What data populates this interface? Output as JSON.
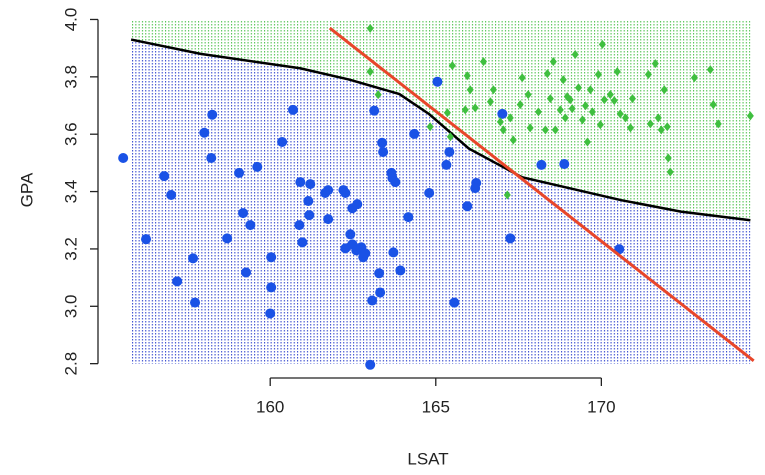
{
  "chart_data": {
    "type": "scatter",
    "x_label": "LSAT",
    "y_label": "GPA",
    "xlim": [
      154.8,
      174.7
    ],
    "ylim": [
      2.75,
      4.04
    ],
    "xticks": [
      160,
      165,
      170
    ],
    "yticks": [
      2.8,
      {
        "value": 3,
        "label": "3.0"
      },
      3.2,
      3.4,
      3.6,
      3.8,
      {
        "value": 4,
        "label": "4.0"
      }
    ],
    "points": [
      {
        "color": "#1a52e6",
        "marker": "circle",
        "x": [
          155.56,
          156.25,
          156.8,
          157.01,
          157.19,
          157.67,
          157.73,
          158.01,
          158.25,
          158.22,
          158.7,
          159.06,
          159.18,
          159.27,
          159.4,
          159.61,
          160,
          160.03,
          160.03,
          160.36,
          160.69,
          160.88,
          160.91,
          160.97,
          161.15,
          161.18,
          161.21,
          161.66,
          161.75,
          161.75,
          162.21,
          162.27,
          162.27,
          162.42,
          162.48,
          162.48,
          162.6,
          162.63,
          162.75,
          162.81,
          162.87,
          163.02,
          163.08,
          163.14,
          163.29,
          163.32,
          163.38,
          163.41,
          163.66,
          163.69,
          163.72,
          163.78,
          163.93,
          164.17,
          164.35,
          164.8,
          165.05,
          165.32,
          165.41,
          165.56,
          165.95,
          166.19,
          166.22,
          167.01,
          167.25,
          168.19,
          168.88,
          170.54
        ],
        "y": [
          3.517,
          3.234,
          3.454,
          3.388,
          3.087,
          3.167,
          3.013,
          3.605,
          3.668,
          3.517,
          3.237,
          3.465,
          3.325,
          3.118,
          3.283,
          3.486,
          2.975,
          3.171,
          3.066,
          3.573,
          3.685,
          3.283,
          3.433,
          3.223,
          3.367,
          3.318,
          3.426,
          3.395,
          3.304,
          3.405,
          3.405,
          3.395,
          3.202,
          3.251,
          3.216,
          3.342,
          3.195,
          3.356,
          3.206,
          3.171,
          3.185,
          2.796,
          3.02,
          3.682,
          3.115,
          3.048,
          3.57,
          3.538,
          3.465,
          3.447,
          3.188,
          3.433,
          3.125,
          3.311,
          3.601,
          3.395,
          3.783,
          3.493,
          3.538,
          3.013,
          3.349,
          3.412,
          3.43,
          3.671,
          3.237,
          3.493,
          3.496,
          3.199
        ]
      },
      {
        "color": "#3fbf3f",
        "marker": "diamond",
        "x": [
          163.02,
          163.02,
          163.26,
          164.83,
          165.35,
          165.44,
          165.5,
          165.89,
          165.95,
          166.04,
          166.19,
          166.44,
          166.65,
          166.74,
          166.95,
          167.04,
          167.16,
          167.25,
          167.34,
          167.55,
          167.61,
          167.79,
          167.85,
          168.1,
          168.31,
          168.37,
          168.46,
          168.55,
          168.61,
          168.76,
          168.85,
          168.91,
          168.97,
          169.06,
          169.12,
          169.21,
          169.31,
          169.43,
          169.52,
          169.58,
          169.67,
          169.73,
          169.91,
          169.97,
          170.03,
          170.09,
          170.27,
          170.39,
          170.48,
          170.57,
          170.73,
          170.88,
          170.94,
          171.42,
          171.48,
          171.63,
          171.72,
          171.81,
          171.9,
          171.99,
          172.02,
          172.08,
          172.81,
          173.29,
          173.38,
          173.53,
          174.5
        ],
        "y": [
          3.969,
          3.818,
          3.738,
          3.626,
          3.675,
          3.591,
          3.839,
          3.685,
          3.804,
          3.755,
          3.692,
          3.853,
          3.713,
          3.755,
          3.643,
          3.615,
          3.388,
          3.657,
          3.58,
          3.703,
          3.797,
          3.738,
          3.622,
          3.678,
          3.615,
          3.811,
          3.724,
          3.853,
          3.615,
          3.685,
          3.79,
          3.657,
          3.731,
          3.72,
          3.689,
          3.878,
          3.762,
          3.65,
          3.699,
          3.573,
          3.755,
          3.678,
          3.808,
          3.633,
          3.913,
          3.72,
          3.738,
          3.717,
          3.818,
          3.671,
          3.657,
          3.622,
          3.724,
          3.808,
          3.636,
          3.846,
          3.657,
          3.615,
          3.755,
          3.626,
          3.517,
          3.468,
          3.797,
          3.825,
          3.703,
          3.636,
          3.664
        ]
      }
    ],
    "boundary": {
      "color": "#000000",
      "below_color": "#3d4fd0",
      "above_color": "#55c455",
      "x": [
        155.8,
        157.9,
        160.9,
        162.4,
        163.9,
        164.8,
        166.0,
        167.6,
        169.1,
        170.6,
        172.4,
        174.5
      ],
      "y": [
        3.93,
        3.88,
        3.83,
        3.79,
        3.74,
        3.67,
        3.55,
        3.45,
        3.41,
        3.37,
        3.33,
        3.3
      ]
    },
    "line": {
      "color": "#e8462a",
      "x": [
        161.8,
        174.6
      ],
      "y": [
        3.97,
        2.81
      ]
    }
  }
}
